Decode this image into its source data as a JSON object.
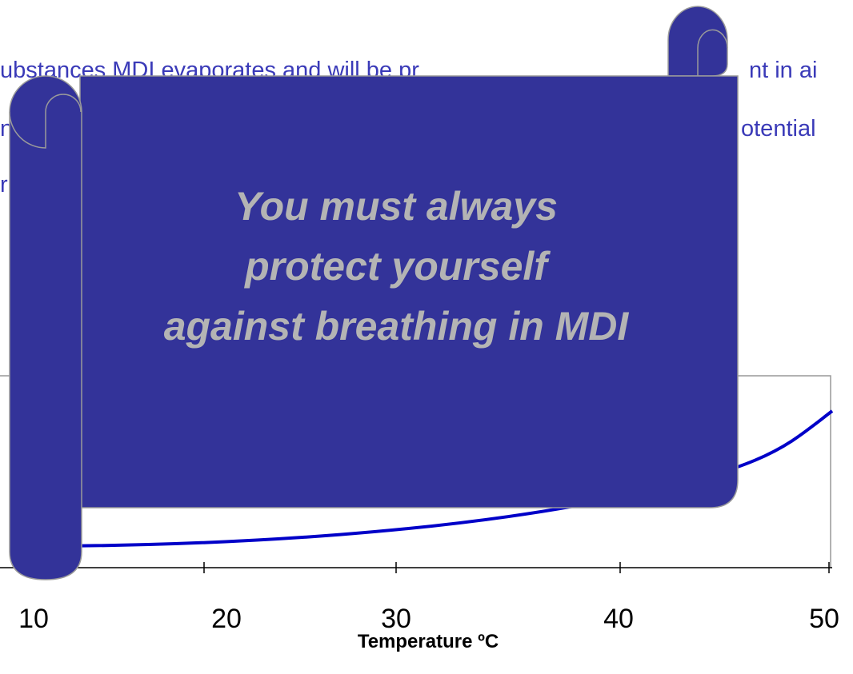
{
  "slide": {
    "body_fragments": [
      "ubstances MDI evaporates and will be pr",
      "nt in ai",
      "n",
      "otential",
      "r"
    ],
    "callout": {
      "lines": [
        "You must always",
        "protect yourself",
        "against breathing in MDI"
      ]
    },
    "chart": {
      "x_tick_labels": [
        "10",
        "20",
        "30",
        "40",
        "50"
      ],
      "x_label": "Temperature ºC"
    }
  }
}
